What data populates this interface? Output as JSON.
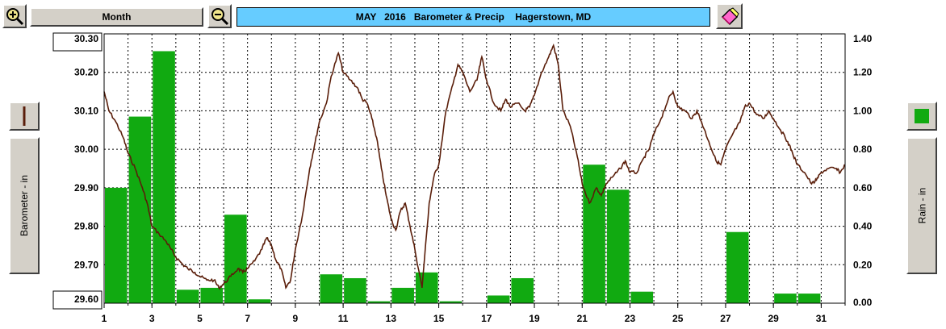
{
  "toolbar": {
    "zoom_in_icon": "zoom-in-magnifier-icon",
    "period_label": "Month",
    "zoom_out_icon": "zoom-out-magnifier-icon",
    "title": "MAY   2016   Barometer & Precip    Hagerstown, MD",
    "eraser_icon": "eraser-icon"
  },
  "left_panel": {
    "swatch_icon": "barometer-line-swatch-icon",
    "label": "Barometer - in",
    "color": "#5a1e0a"
  },
  "right_panel": {
    "swatch_icon": "rain-bar-swatch-icon",
    "label": "Rain - in",
    "color": "#11aa11"
  },
  "chart_data": {
    "type": "bar+line",
    "title": "MAY   2016   Barometer & Precip    Hagerstown, MD",
    "x_ticks": [
      1,
      3,
      5,
      7,
      9,
      11,
      13,
      15,
      17,
      19,
      21,
      23,
      25,
      27,
      29,
      31
    ],
    "x_range": [
      1,
      32
    ],
    "left_axis": {
      "label": "Barometer - in",
      "range": [
        29.6,
        30.3
      ],
      "ticks": [
        "29.60",
        "29.70",
        "29.80",
        "29.90",
        "30.00",
        "30.10",
        "30.20",
        "30.30"
      ]
    },
    "right_axis": {
      "label": "Rain - in",
      "range": [
        0.0,
        1.4
      ],
      "ticks": [
        "0.00",
        "0.20",
        "0.40",
        "0.60",
        "0.80",
        "1.00",
        "1.20",
        "1.40"
      ]
    },
    "grid": true,
    "rain": {
      "name": "Rain - in",
      "color": "#11aa11",
      "day": [
        1,
        2,
        3,
        4,
        5,
        6,
        7,
        8,
        9,
        10,
        11,
        12,
        13,
        14,
        15,
        16,
        17,
        18,
        19,
        20,
        21,
        22,
        23,
        24,
        25,
        26,
        27,
        28,
        29,
        30,
        31
      ],
      "values": [
        0.6,
        0.97,
        1.31,
        0.07,
        0.08,
        0.46,
        0.02,
        0.0,
        0.0,
        0.15,
        0.13,
        0.01,
        0.08,
        0.16,
        0.01,
        0.0,
        0.04,
        0.13,
        0.0,
        0.0,
        0.72,
        0.59,
        0.06,
        0.0,
        0.0,
        0.0,
        0.37,
        0.0,
        0.05,
        0.05,
        0.0
      ]
    },
    "barometer": {
      "name": "Barometer - in",
      "color": "#5a1e0a",
      "x": [
        1.0,
        1.2,
        1.5,
        1.8,
        2.0,
        2.3,
        2.6,
        2.8,
        3.0,
        3.3,
        3.6,
        3.8,
        4.0,
        4.3,
        4.5,
        4.8,
        5.0,
        5.3,
        5.6,
        5.8,
        6.0,
        6.3,
        6.6,
        6.8,
        7.0,
        7.3,
        7.6,
        7.8,
        8.0,
        8.2,
        8.4,
        8.6,
        8.8,
        9.0,
        9.3,
        9.6,
        9.8,
        10.0,
        10.3,
        10.5,
        10.8,
        11.0,
        11.3,
        11.6,
        11.8,
        12.0,
        12.2,
        12.4,
        12.6,
        12.8,
        13.0,
        13.2,
        13.4,
        13.6,
        13.8,
        14.0,
        14.3,
        14.6,
        14.8,
        15.0,
        15.3,
        15.6,
        15.8,
        16.0,
        16.3,
        16.6,
        16.8,
        17.0,
        17.3,
        17.6,
        17.8,
        18.0,
        18.3,
        18.6,
        18.8,
        19.0,
        19.3,
        19.6,
        19.8,
        20.0,
        20.2,
        20.5,
        20.8,
        21.0,
        21.3,
        21.6,
        21.8,
        22.0,
        22.3,
        22.6,
        22.8,
        23.0,
        23.3,
        23.6,
        23.8,
        24.0,
        24.3,
        24.6,
        24.8,
        25.0,
        25.3,
        25.6,
        25.8,
        26.0,
        26.3,
        26.6,
        26.8,
        27.0,
        27.3,
        27.6,
        27.8,
        28.0,
        28.3,
        28.6,
        28.8,
        29.0,
        29.3,
        29.6,
        29.8,
        30.0,
        30.3,
        30.6,
        30.8,
        31.0,
        31.3,
        31.6,
        31.8,
        32.0
      ],
      "values": [
        30.15,
        30.1,
        30.07,
        30.03,
        29.99,
        29.95,
        29.9,
        29.86,
        29.8,
        29.78,
        29.76,
        29.74,
        29.72,
        29.7,
        29.69,
        29.68,
        29.67,
        29.66,
        29.66,
        29.64,
        29.65,
        29.67,
        29.69,
        29.68,
        29.69,
        29.71,
        29.74,
        29.77,
        29.75,
        29.71,
        29.69,
        29.64,
        29.66,
        29.74,
        29.83,
        29.95,
        30.01,
        30.07,
        30.12,
        30.19,
        30.25,
        30.2,
        30.18,
        30.16,
        30.13,
        30.12,
        30.08,
        30.03,
        29.95,
        29.88,
        29.82,
        29.79,
        29.84,
        29.86,
        29.8,
        29.74,
        29.64,
        29.86,
        29.93,
        29.96,
        30.1,
        30.17,
        30.22,
        30.2,
        30.15,
        30.18,
        30.24,
        30.18,
        30.12,
        30.1,
        30.13,
        30.11,
        30.12,
        30.1,
        30.11,
        30.14,
        30.2,
        30.24,
        30.27,
        30.22,
        30.1,
        30.06,
        29.98,
        29.91,
        29.86,
        29.9,
        29.88,
        29.91,
        29.93,
        29.95,
        29.97,
        29.94,
        29.94,
        29.98,
        30.0,
        30.04,
        30.08,
        30.13,
        30.15,
        30.11,
        30.1,
        30.08,
        30.1,
        30.07,
        30.02,
        29.97,
        29.96,
        30.0,
        30.04,
        30.07,
        30.11,
        30.12,
        30.09,
        30.08,
        30.1,
        30.08,
        30.05,
        30.02,
        29.99,
        29.96,
        29.94,
        29.91,
        29.92,
        29.94,
        29.95,
        29.95,
        29.94,
        29.96
      ]
    }
  }
}
